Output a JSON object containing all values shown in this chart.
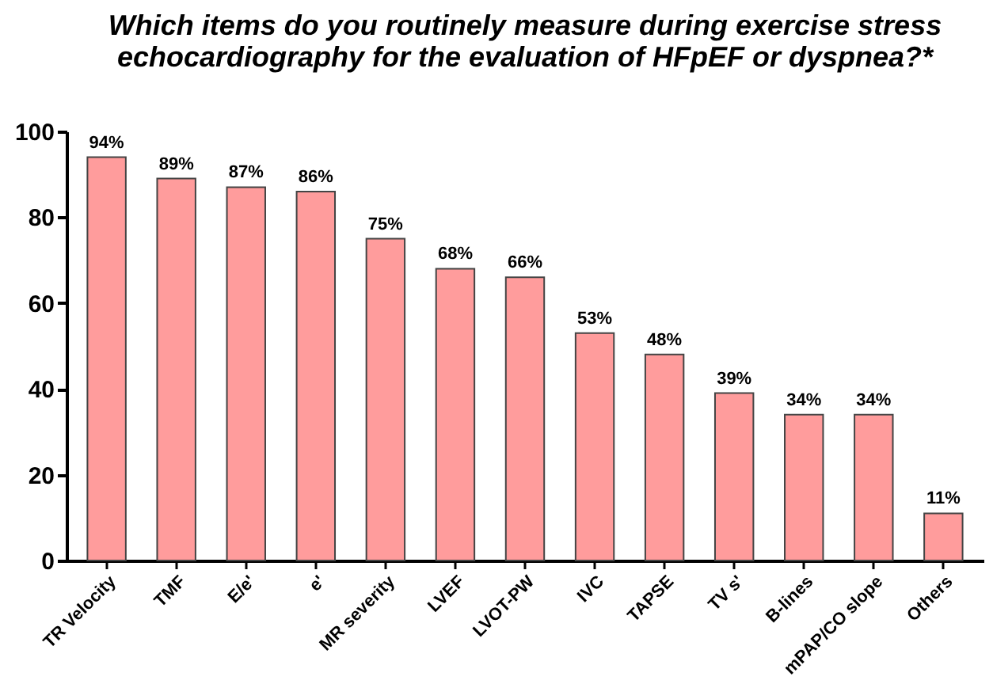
{
  "chart_data": {
    "type": "bar",
    "title": "Which items do you routinely measure during exercise stress echocardiography for the evaluation of HFpEF or dyspnea?*",
    "categories": [
      "TR Velocity",
      "TMF",
      "E/e'",
      "e'",
      "MR severity",
      "LVEF",
      "LVOT-PW",
      "IVC",
      "TAPSE",
      "TV s'",
      "B-lines",
      "mPAP/CO slope",
      "Others"
    ],
    "values": [
      94,
      89,
      87,
      86,
      75,
      68,
      66,
      53,
      48,
      39,
      34,
      34,
      11
    ],
    "value_labels": [
      "94%",
      "89%",
      "87%",
      "86%",
      "75%",
      "68%",
      "66%",
      "53%",
      "48%",
      "39%",
      "34%",
      "34%",
      "11%"
    ],
    "color": "#ff9c9c",
    "ylim": [
      0,
      100
    ],
    "yticks": [
      0,
      20,
      40,
      60,
      80,
      100
    ],
    "grid": false
  }
}
